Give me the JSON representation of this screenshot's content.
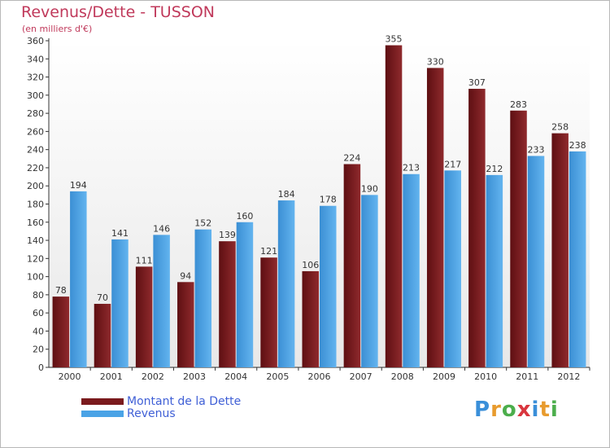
{
  "header": {
    "title": "Revenus/Dette - TUSSON",
    "subtitle": "(en milliers d'€)"
  },
  "chart_data": {
    "type": "bar",
    "categories": [
      "2000",
      "2001",
      "2002",
      "2003",
      "2004",
      "2005",
      "2006",
      "2007",
      "2008",
      "2009",
      "2010",
      "2011",
      "2012"
    ],
    "series": [
      {
        "name": "Montant de la Dette",
        "values": [
          78,
          70,
          111,
          94,
          139,
          121,
          106,
          224,
          355,
          330,
          307,
          283,
          258
        ],
        "color": "#7a1a1d"
      },
      {
        "name": "Revenus",
        "values": [
          194,
          141,
          146,
          152,
          160,
          184,
          178,
          190,
          213,
          217,
          212,
          233,
          238
        ],
        "color": "#4aa3e6"
      }
    ],
    "ylim": [
      0,
      360
    ],
    "yticks": [
      0,
      20,
      40,
      60,
      80,
      100,
      120,
      140,
      160,
      180,
      200,
      220,
      240,
      260,
      280,
      300,
      320,
      340,
      360
    ],
    "grid": false,
    "legend_position": "bottom-left"
  },
  "logo": {
    "letters": [
      "P",
      "r",
      "o",
      "x",
      "i",
      "t",
      "i"
    ],
    "colors": [
      "#3a8fd9",
      "#e89b2e",
      "#4cae4c",
      "#d9363e",
      "#3a8fd9",
      "#e89b2e",
      "#4cae4c"
    ]
  }
}
